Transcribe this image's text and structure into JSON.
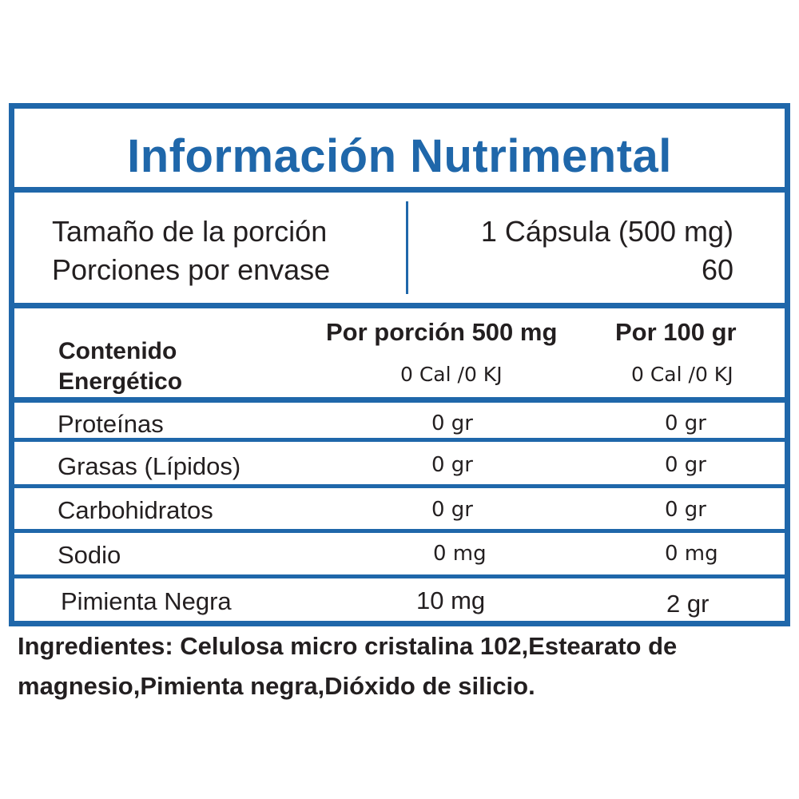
{
  "title": "Información Nutrimental",
  "serving": {
    "size_label": "Tamaño de la porción",
    "size_value": "1 Cápsula (500 mg)",
    "per_container_label": "Porciones por envase",
    "per_container_value": "60"
  },
  "columns": {
    "per_serving": "Por porción 500 mg",
    "per_100": "Por 100 gr"
  },
  "energy": {
    "label_line1": "Contenido",
    "label_line2": "Energético",
    "per_serving": "0 Cal /0 KJ",
    "per_100": "0 Cal /0 KJ"
  },
  "nutrients": [
    {
      "name": "Proteínas",
      "per_serving": "0 gr",
      "per_100": "0 gr"
    },
    {
      "name": "Grasas (Lípidos)",
      "per_serving": "0 gr",
      "per_100": "0 gr"
    },
    {
      "name": "Carbohidratos",
      "per_serving": "0 gr",
      "per_100": "0 gr"
    },
    {
      "name": "Sodio",
      "per_serving": "0 mg",
      "per_100": "0 mg"
    },
    {
      "name": "Pimienta Negra",
      "per_serving": "10 mg",
      "per_100": "2 gr"
    }
  ],
  "ingredients": "Ingredientes: Celulosa micro cristalina 102,Estearato de magnesio,Pimienta negra,Dióxido de silicio.",
  "colors": {
    "accent": "#1f67aa",
    "text": "#231f20"
  }
}
